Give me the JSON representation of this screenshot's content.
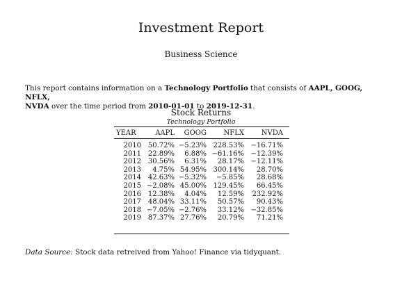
{
  "report": {
    "title": "Investment Report",
    "author": "Business Science"
  },
  "intro": {
    "text_1": "This report contains information on a ",
    "portfolio_name": "Technology Portfolio",
    "text_2": " that consists of ",
    "tickers": "AAPL, GOOG, NFLX,",
    "tickers_line2": "NVDA",
    "text_3": " over the time period from ",
    "start_date": "2010-01-01",
    "text_4": " to ",
    "end_date": "2019-12-31",
    "text_5": "."
  },
  "table": {
    "caption": "Stock Returns",
    "subcaption": "Technology Portfolio",
    "headers": [
      "YEAR",
      "AAPL",
      "GOOG",
      "NFLX",
      "NVDA"
    ],
    "rows": [
      [
        "2010",
        "50.72%",
        "−5.23%",
        "228.53%",
        "−16.71%"
      ],
      [
        "2011",
        "22.89%",
        "6.88%",
        "−61.16%",
        "−12.39%"
      ],
      [
        "2012",
        "30.56%",
        "6.31%",
        "28.17%",
        "−12.11%"
      ],
      [
        "2013",
        "4.75%",
        "54.95%",
        "300.14%",
        "28.70%"
      ],
      [
        "2014",
        "42.63%",
        "−5.32%",
        "−5.85%",
        "28.68%"
      ],
      [
        "2015",
        "−2.08%",
        "45.00%",
        "129.45%",
        "66.45%"
      ],
      [
        "2016",
        "12.38%",
        "4.04%",
        "12.59%",
        "232.92%"
      ],
      [
        "2017",
        "48.04%",
        "33.11%",
        "50.57%",
        "90.43%"
      ],
      [
        "2018",
        "−7.05%",
        "−2.76%",
        "33.12%",
        "−32.85%"
      ],
      [
        "2019",
        "87.37%",
        "27.76%",
        "20.79%",
        "71.21%"
      ]
    ]
  },
  "source": {
    "label": "Data Source:",
    "text": " Stock data retreived from Yahoo! Finance via tidyquant."
  }
}
